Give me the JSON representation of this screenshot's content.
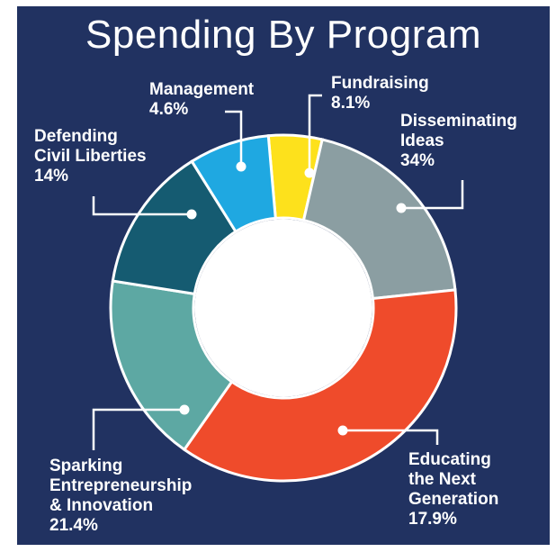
{
  "chart_data": {
    "type": "pie",
    "title": "Spending By Program",
    "slices": [
      {
        "label_lines": [
          "Fundraising"
        ],
        "value_text": "8.1%",
        "value": 8.1,
        "color": "#FDE11C"
      },
      {
        "label_lines": [
          "Disseminating",
          "Ideas"
        ],
        "value_text": "34%",
        "value": 34,
        "color": "#8B9EA2"
      },
      {
        "label_lines": [
          "Educating",
          "the Next",
          "Generation"
        ],
        "value_text": "17.9%",
        "value": 17.9,
        "color": "#EF4B2B"
      },
      {
        "label_lines": [
          "Sparking",
          "Entrepreneurship",
          "& Innovation"
        ],
        "value_text": "21.4%",
        "value": 21.4,
        "color": "#5DA8A3"
      },
      {
        "label_lines": [
          "Defending",
          "Civil Liberties"
        ],
        "value_text": "14%",
        "value": 14,
        "color": "#155B71"
      },
      {
        "label_lines": [
          "Management"
        ],
        "value_text": "4.6%",
        "value": 4.6,
        "color": "#1FA8E1"
      }
    ]
  }
}
